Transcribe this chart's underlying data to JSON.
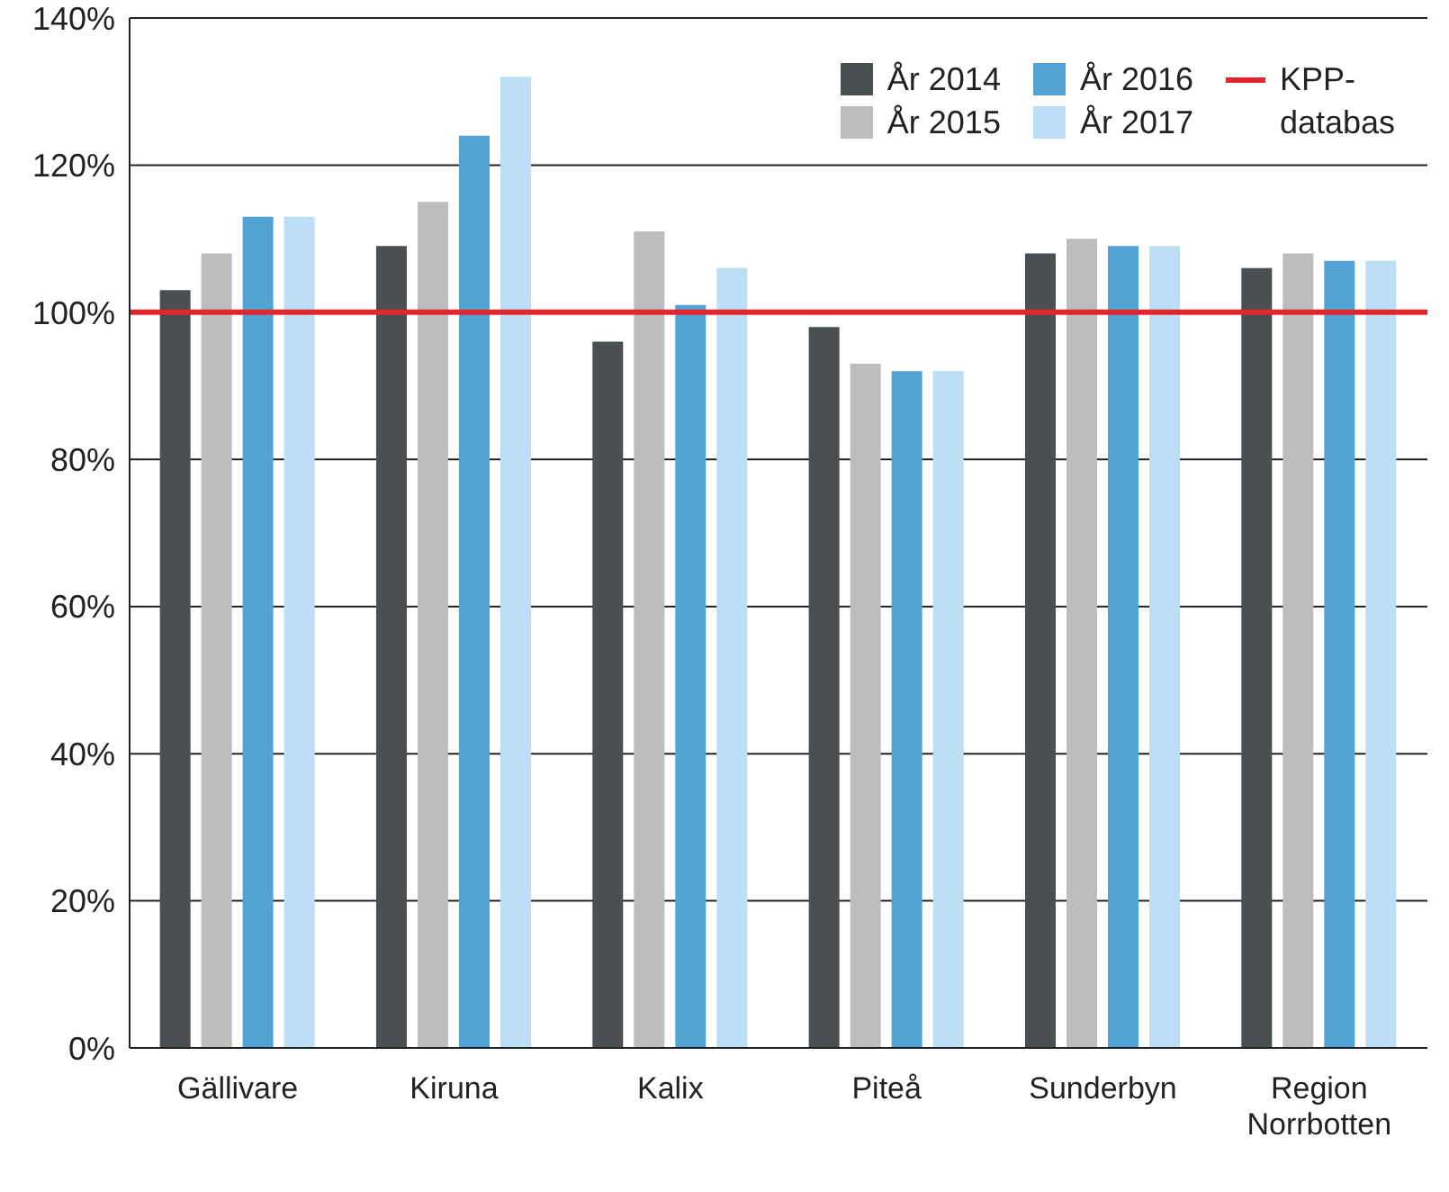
{
  "chart_data": {
    "type": "bar",
    "categories": [
      "Gällivare",
      "Kiruna",
      "Kalix",
      "Piteå",
      "Sunderbyn",
      "Region Norrbotten"
    ],
    "series": [
      {
        "name": "År 2014",
        "color": "#4a4f51",
        "values": [
          103,
          109,
          96,
          98,
          108,
          106
        ]
      },
      {
        "name": "År 2015",
        "color": "#bdbdbd",
        "values": [
          108,
          115,
          111,
          93,
          110,
          108
        ]
      },
      {
        "name": "År 2016",
        "color": "#52a2d6",
        "values": [
          113,
          124,
          101,
          92,
          109,
          107
        ]
      },
      {
        "name": "År 2017",
        "color": "#bcdff5",
        "values": [
          113,
          132,
          106,
          92,
          109,
          107
        ]
      }
    ],
    "ylim": [
      0,
      140
    ],
    "yticks": [
      {
        "value": 0,
        "label": "0%"
      },
      {
        "value": 20,
        "label": "20%"
      },
      {
        "value": 40,
        "label": "40%"
      },
      {
        "value": 60,
        "label": "60%"
      },
      {
        "value": 80,
        "label": "80%"
      },
      {
        "value": 100,
        "label": "100%"
      },
      {
        "value": 120,
        "label": "120%"
      },
      {
        "value": 140,
        "label": "140%"
      }
    ],
    "ref_lines": [
      {
        "axis": "y",
        "value": 100,
        "label": "KPP-databas",
        "color": "#e0262e"
      }
    ],
    "grid": "y",
    "legend": "top right"
  }
}
